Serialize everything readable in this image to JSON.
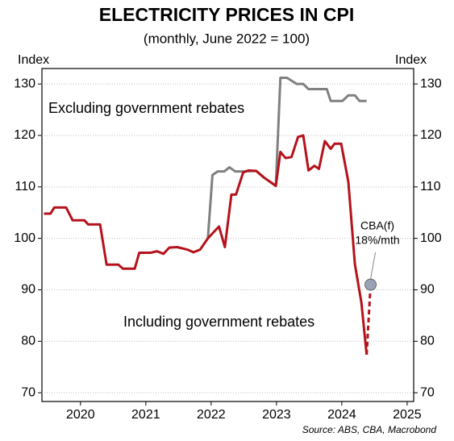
{
  "chart_data": {
    "type": "line",
    "title": "ELECTRICITY PRICES IN CPI",
    "subtitle": "(monthly, June 2022 = 100)",
    "y_label": "Index",
    "y2_label": "Index",
    "source": "Source: ABS, CBA, Macrobond",
    "xlim": [
      2019.91,
      2025.6
    ],
    "xticks": [
      {
        "value": 2020.5,
        "label": "2020"
      },
      {
        "value": 2021.5,
        "label": "2021"
      },
      {
        "value": 2022.5,
        "label": "2022"
      },
      {
        "value": 2023.5,
        "label": "2023"
      },
      {
        "value": 2024.5,
        "label": "2024"
      },
      {
        "value": 2025.5,
        "label": "2025"
      }
    ],
    "ylim": [
      68.3,
      133
    ],
    "yticks": [
      70,
      80,
      90,
      100,
      110,
      120,
      130
    ],
    "y2lim": [
      68.3,
      133
    ],
    "y2ticks": [
      70,
      80,
      90,
      100,
      110,
      120,
      130
    ],
    "grid": true,
    "series": [
      {
        "name": "Excluding government rebates",
        "color": "#808080",
        "x": [
          2022.45,
          2022.52,
          2022.6,
          2022.7,
          2022.78,
          2022.87,
          2022.99,
          2023.19,
          2023.31,
          2023.49,
          2023.56,
          2023.66,
          2023.81,
          2023.91,
          2023.99,
          2024.27,
          2024.33,
          2024.51,
          2024.6,
          2024.7,
          2024.77,
          2024.88
        ],
        "values": [
          100,
          112.3,
          113,
          113,
          113.8,
          113,
          113,
          113.1,
          111.8,
          110.2,
          131.2,
          131.2,
          130,
          130,
          129,
          129,
          126.7,
          126.7,
          127.8,
          127.8,
          126.7,
          126.7
        ]
      },
      {
        "name": "Including government rebates",
        "color": "#b5121b",
        "x": [
          2019.94,
          2020.04,
          2020.1,
          2020.28,
          2020.38,
          2020.56,
          2020.62,
          2020.8,
          2020.9,
          2021.08,
          2021.15,
          2021.33,
          2021.4,
          2021.57,
          2021.67,
          2021.77,
          2021.86,
          2021.98,
          2022.14,
          2022.23,
          2022.33,
          2022.45,
          2022.62,
          2022.71,
          2022.81,
          2022.88,
          2022.99,
          2023.07,
          2023.19,
          2023.31,
          2023.49,
          2023.56,
          2023.64,
          2023.73,
          2023.83,
          2023.91,
          2023.99,
          2024.08,
          2024.15,
          2024.24,
          2024.33,
          2024.39,
          2024.49,
          2024.6,
          2024.7,
          2024.8,
          2024.88
        ],
        "values": [
          104.8,
          104.8,
          106,
          106,
          103.5,
          103.5,
          102.7,
          102.7,
          94.9,
          94.9,
          94.1,
          94.1,
          97.2,
          97.2,
          97.5,
          97,
          98.2,
          98.3,
          97.8,
          97.3,
          97.8,
          100,
          102.3,
          98.3,
          108.5,
          108.5,
          112.8,
          113.2,
          113.1,
          111.8,
          110.2,
          116.8,
          115.6,
          115.8,
          119.7,
          120,
          113.2,
          114.1,
          113.5,
          118.9,
          117.4,
          118.4,
          118.4,
          111,
          95,
          87.5,
          77.4
        ]
      }
    ],
    "forecast": {
      "name": "CBA(f)",
      "label": "18%/mth",
      "color": "#b5121b",
      "marker_color": "#9aa3b5",
      "x": [
        2024.88,
        2024.94
      ],
      "values": [
        77.4,
        91
      ]
    }
  }
}
